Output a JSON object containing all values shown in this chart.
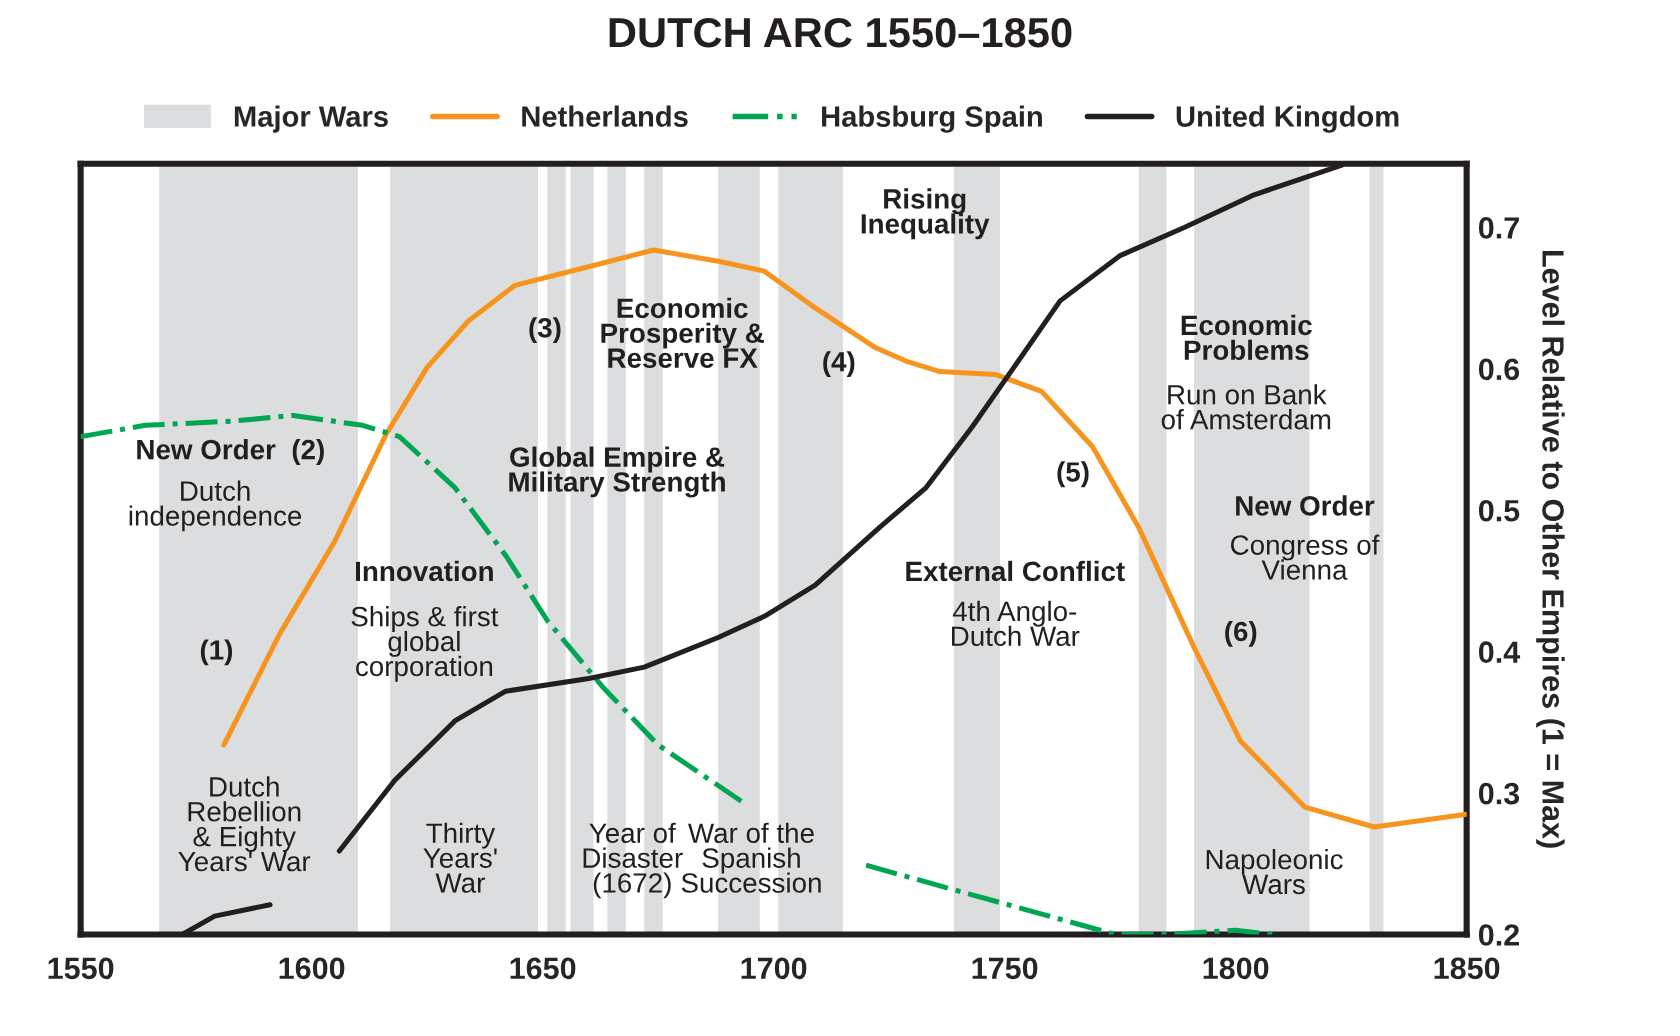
{
  "chart_data": {
    "type": "line",
    "title": "DUTCH ARC 1550–1850",
    "ylabel": "Level Relative to Other Empires (1 = Max)",
    "xlim": [
      1550,
      1850
    ],
    "xticks": [
      1550,
      1600,
      1650,
      1700,
      1750,
      1800,
      1850
    ],
    "ylim": [
      0.2,
      0.745
    ],
    "yticks": [
      0.2,
      0.3,
      0.4,
      0.5,
      0.6,
      0.7
    ],
    "legend": "top",
    "grid": false,
    "line_style": "solid",
    "marker": "none",
    "series": [
      {
        "name": "Netherlands",
        "color": "#f7941d",
        "x": [
          1581,
          1593,
          1605,
          1616,
          1625,
          1634,
          1644,
          1661,
          1674,
          1688,
          1698,
          1709,
          1722,
          1729,
          1736,
          1748,
          1758,
          1769,
          1779,
          1791,
          1801,
          1815,
          1830,
          1850
        ],
        "values": [
          0.334,
          0.412,
          0.478,
          0.553,
          0.601,
          0.634,
          0.659,
          0.673,
          0.684,
          0.676,
          0.669,
          0.643,
          0.615,
          0.605,
          0.598,
          0.596,
          0.584,
          0.545,
          0.488,
          0.403,
          0.337,
          0.29,
          0.276,
          0.285
        ]
      },
      {
        "name": "Habsburg Spain",
        "color": "#00a651",
        "line_style": "dashdot",
        "x": [
          1550,
          1564,
          1583,
          1596,
          1611,
          1619,
          1631,
          1642,
          1651,
          1663,
          1675,
          1694,
          1707,
          1720,
          1743,
          1774,
          1785,
          1800,
          1808
        ],
        "values": [
          0.552,
          0.56,
          0.563,
          0.567,
          0.56,
          0.552,
          0.516,
          0.468,
          0.422,
          0.375,
          0.334,
          0.292,
          null,
          0.249,
          0.228,
          0.2,
          0.2,
          0.203,
          0.2
        ]
      },
      {
        "name": "United Kingdom",
        "color": "#231f20",
        "x": [
          1572,
          1579,
          1591,
          1598,
          1606,
          1618,
          1631,
          1642,
          1660,
          1672,
          1688,
          1698,
          1709,
          1723,
          1733,
          1743,
          1752,
          1762,
          1775,
          1789,
          1804,
          1823
        ],
        "values": [
          0.2,
          0.213,
          0.221,
          null,
          0.259,
          0.309,
          0.351,
          0.372,
          0.381,
          0.389,
          0.41,
          0.425,
          0.447,
          0.488,
          0.516,
          0.559,
          0.601,
          0.648,
          0.68,
          0.7,
          0.723,
          0.744
        ]
      }
    ],
    "bands": [
      {
        "axis": "x",
        "from": 1567,
        "to": 1610,
        "label": "Major Wars",
        "color": "#dcdddf"
      },
      {
        "axis": "x",
        "from": 1617,
        "to": 1649,
        "color": "#dcdddf"
      },
      {
        "axis": "x",
        "from": 1651,
        "to": 1655,
        "color": "#dcdddf"
      },
      {
        "axis": "x",
        "from": 1656,
        "to": 1661,
        "color": "#dcdddf"
      },
      {
        "axis": "x",
        "from": 1664,
        "to": 1668,
        "color": "#dcdddf"
      },
      {
        "axis": "x",
        "from": 1672,
        "to": 1676,
        "color": "#dcdddf"
      },
      {
        "axis": "x",
        "from": 1688,
        "to": 1697,
        "color": "#dcdddf"
      },
      {
        "axis": "x",
        "from": 1701,
        "to": 1715,
        "color": "#dcdddf"
      },
      {
        "axis": "x",
        "from": 1739,
        "to": 1749,
        "color": "#dcdddf"
      },
      {
        "axis": "x",
        "from": 1779,
        "to": 1785,
        "color": "#dcdddf"
      },
      {
        "axis": "x",
        "from": 1791,
        "to": 1816,
        "color": "#dcdddf"
      },
      {
        "axis": "x",
        "from": 1829,
        "to": 1832,
        "color": "#dcdddf"
      }
    ],
    "annotations": [
      "(1)",
      "New Order  (2)",
      "Dutch\nindependence",
      "Innovation",
      "Ships & first\nglobal\ncorporation",
      "(3)",
      "Economic\nProsperity &\nReserve FX",
      "(4)",
      "Global Empire &\nMilitary Strength",
      "Rising\nInequality",
      "External Conflict",
      "4th Anglo-\nDutch War",
      "(5)",
      "(6)",
      "Economic\nProblems",
      "Run on Bank\nof Amsterdam",
      "New Order",
      "Congress of\nVienna",
      "Dutch\nRebellion\n& Eighty\nYears' War",
      "Thirty\nYears'\nWar",
      "Year of\nDisaster\n(1672)",
      "War of the\nSpanish\nSuccession",
      "Napoleonic\nWars"
    ]
  }
}
